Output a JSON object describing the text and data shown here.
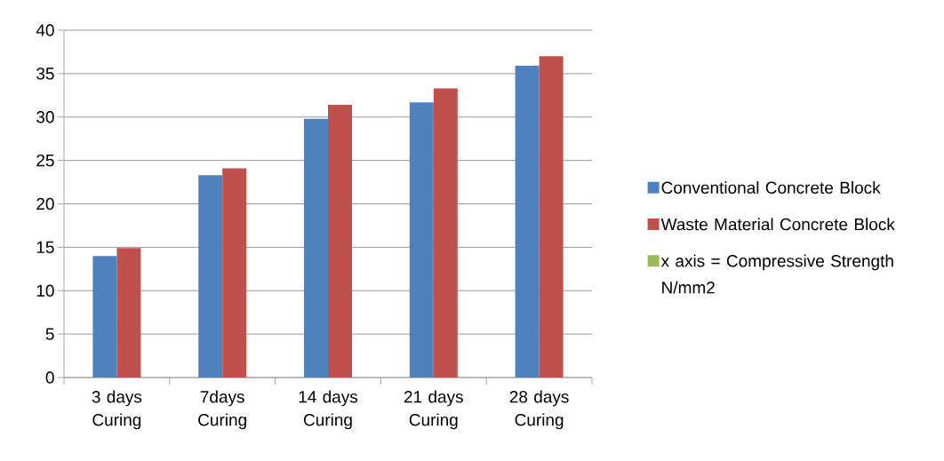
{
  "chart_data": {
    "type": "bar",
    "categories": [
      "3 days Curing",
      "7days Curing",
      "14 days Curing",
      "21 days Curing",
      "28 days Curing"
    ],
    "series": [
      {
        "name": "Conventional Concrete Block",
        "color": "#4f81bd",
        "values": [
          14.0,
          23.3,
          29.8,
          31.7,
          35.9
        ]
      },
      {
        "name": "Waste Material Concrete Block",
        "color": "#c0504d",
        "values": [
          14.9,
          24.1,
          31.4,
          33.3,
          37.0
        ]
      },
      {
        "name": "x axis = Compressive Strength N/mm2",
        "color": "#9bbb59",
        "values": [
          null,
          null,
          null,
          null,
          null
        ]
      }
    ],
    "ylim": [
      0,
      40
    ],
    "yticks": [
      0,
      5,
      10,
      15,
      20,
      25,
      30,
      35,
      40
    ],
    "grid": "y",
    "legend": "right"
  }
}
